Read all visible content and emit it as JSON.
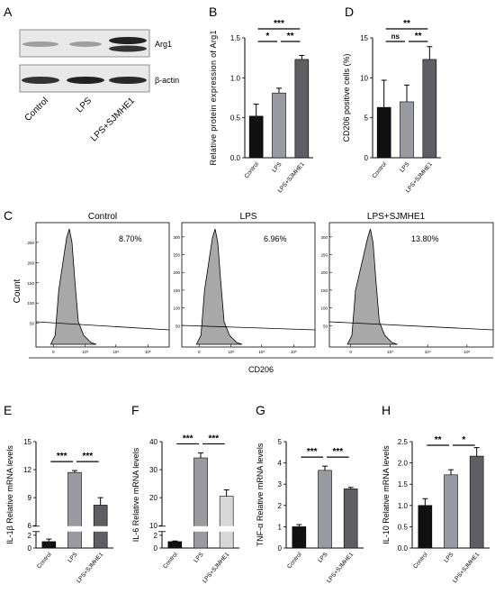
{
  "panel_letters": [
    "A",
    "B",
    "C",
    "D",
    "E",
    "F",
    "G",
    "H"
  ],
  "blot": {
    "bands": [
      "Arg1",
      "β-actin"
    ],
    "lanes": [
      "Control",
      "LPS",
      "LPS+SJMHE1"
    ]
  },
  "flow": {
    "x_label": "CD206",
    "y_label": "Count",
    "x_ticks": [
      "0",
      "10³",
      "10⁴",
      "10⁵"
    ],
    "panels": [
      {
        "title": "Control",
        "percent": "8.70%",
        "y_ticks": [
          "50",
          "100",
          "150",
          "200",
          "250"
        ],
        "ymax": 290
      },
      {
        "title": "LPS",
        "percent": "6.96%",
        "y_ticks": [
          "50",
          "100",
          "150",
          "200",
          "250",
          "300"
        ],
        "ymax": 330
      },
      {
        "title": "LPS+SJMHE1",
        "percent": "13.80%",
        "y_ticks": [
          "50",
          "100",
          "150",
          "200",
          "250",
          "300"
        ],
        "ymax": 330
      }
    ]
  },
  "colors": {
    "control": "#111111",
    "lps": "#9a9aa2",
    "sjmhe1": "#5e5e64",
    "il6_sjmhe1": "#d8d8d8"
  },
  "chart_data": [
    {
      "panel": "B",
      "type": "bar",
      "categories": [
        "Control",
        "LPS",
        "LPS+SJMHE1"
      ],
      "values": [
        0.52,
        0.81,
        1.23
      ],
      "errors": [
        0.15,
        0.06,
        0.05
      ],
      "ylabel": "Relative protein expression of Arg1",
      "ylim": [
        0,
        1.5
      ],
      "yticks": [
        "0.0",
        "0.5",
        "1.0",
        "1.5"
      ],
      "significance": [
        {
          "from": 1,
          "to": 2,
          "label": "*"
        },
        {
          "from": 2,
          "to": 3,
          "label": "**"
        },
        {
          "from": 1,
          "to": 3,
          "label": "***"
        }
      ]
    },
    {
      "panel": "D",
      "type": "bar",
      "categories": [
        "Control",
        "LPS",
        "LPS+SJMHE1"
      ],
      "values": [
        6.3,
        7.0,
        12.3
      ],
      "errors": [
        3.4,
        2.1,
        1.6
      ],
      "ylabel": "CD206 positive cells (%)",
      "ylim": [
        0,
        15
      ],
      "yticks": [
        "0",
        "5",
        "10",
        "15"
      ],
      "significance": [
        {
          "from": 1,
          "to": 2,
          "label": "ns"
        },
        {
          "from": 2,
          "to": 3,
          "label": "**"
        },
        {
          "from": 1,
          "to": 3,
          "label": "**"
        }
      ]
    },
    {
      "panel": "E",
      "type": "bar",
      "categories": [
        "Control",
        "LPS",
        "LPS+SJMHE1"
      ],
      "values": [
        1.0,
        11.7,
        8.2
      ],
      "errors": [
        0.4,
        0.2,
        0.8
      ],
      "ylabel": "IL-1β Relative mRNA levels",
      "ylim": [
        0,
        15
      ],
      "yticks": [
        "0",
        "2",
        "6",
        "9",
        "12",
        "15"
      ],
      "axis_break": [
        2.5,
        6
      ],
      "significance": [
        {
          "from": 1,
          "to": 2,
          "label": "***"
        },
        {
          "from": 2,
          "to": 3,
          "label": "***"
        }
      ]
    },
    {
      "panel": "F",
      "type": "bar",
      "categories": [
        "Control",
        "LPS",
        "LPS+SJMHE1"
      ],
      "values": [
        1.0,
        34.2,
        20.5
      ],
      "errors": [
        0.1,
        1.8,
        2.3
      ],
      "ylabel": "IL-6 Relative mRNA levels",
      "ylim": [
        0,
        40
      ],
      "yticks": [
        "0",
        "2",
        "10",
        "20",
        "30",
        "40"
      ],
      "axis_break": [
        2.5,
        10
      ],
      "significance": [
        {
          "from": 1,
          "to": 2,
          "label": "***"
        },
        {
          "from": 2,
          "to": 3,
          "label": "***"
        }
      ]
    },
    {
      "panel": "G",
      "type": "bar",
      "categories": [
        "Control",
        "LPS",
        "LPS+SJMHE1"
      ],
      "values": [
        1.0,
        3.65,
        2.78
      ],
      "errors": [
        0.1,
        0.2,
        0.07
      ],
      "ylabel": "TNF-α Relative mRNA levels",
      "ylim": [
        0,
        5
      ],
      "yticks": [
        "0",
        "1",
        "2",
        "3",
        "4",
        "5"
      ],
      "significance": [
        {
          "from": 1,
          "to": 2,
          "label": "***"
        },
        {
          "from": 2,
          "to": 3,
          "label": "***"
        }
      ]
    },
    {
      "panel": "H",
      "type": "bar",
      "categories": [
        "Control",
        "LPS",
        "LPS+SJMHE1"
      ],
      "values": [
        1.0,
        1.72,
        2.16
      ],
      "errors": [
        0.16,
        0.12,
        0.2
      ],
      "ylabel": "IL-10 Relative mRNA levels",
      "ylim": [
        0,
        2.5
      ],
      "yticks": [
        "0.0",
        "0.5",
        "1.0",
        "1.5",
        "2.0",
        "2.5"
      ],
      "significance": [
        {
          "from": 1,
          "to": 2,
          "label": "**"
        },
        {
          "from": 2,
          "to": 3,
          "label": "*"
        }
      ]
    }
  ]
}
